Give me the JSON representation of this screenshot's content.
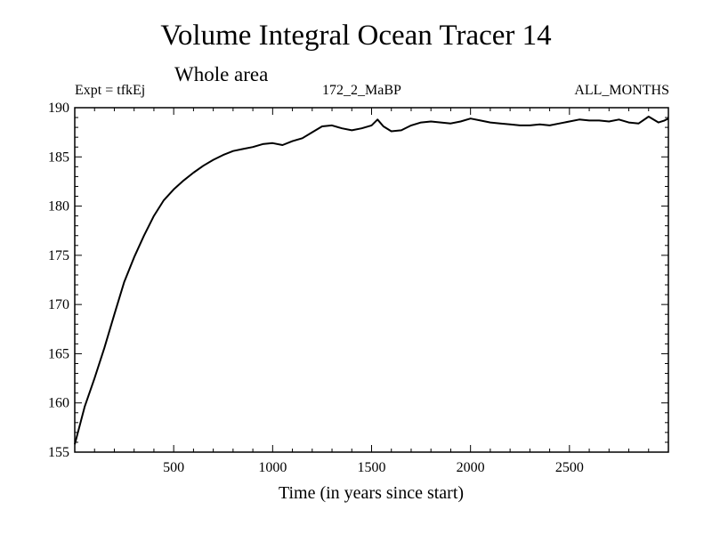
{
  "header": {
    "title": "Volume Integral Ocean Tracer 14",
    "subtitle": "Whole area",
    "expt": "Expt = tfkEj",
    "run": "172_2_MaBP",
    "period": "ALL_MONTHS"
  },
  "chart_data": {
    "type": "line",
    "title": "Volume Integral Ocean Tracer 14",
    "subtitle": "Whole area",
    "xlabel": "Time (in years since start)",
    "ylabel": "",
    "xlim": [
      0,
      3000
    ],
    "ylim": [
      155,
      190
    ],
    "xticks": [
      500,
      1000,
      1500,
      2000,
      2500
    ],
    "xtick_labels": [
      "500",
      "1000",
      "1500",
      "2000",
      "2500"
    ],
    "yticks": [
      155,
      160,
      165,
      170,
      175,
      180,
      185,
      190
    ],
    "ytick_labels": [
      "155",
      "160",
      "165",
      "170",
      "175",
      "180",
      "185",
      "190"
    ],
    "grid": false,
    "line_color": "#000000",
    "series": [
      {
        "x": [
          0,
          20,
          50,
          100,
          150,
          200,
          250,
          300,
          350,
          400,
          450,
          500,
          550,
          600,
          650,
          700,
          750,
          800,
          850,
          900,
          950,
          1000,
          1050,
          1100,
          1150,
          1200,
          1250,
          1300,
          1350,
          1400,
          1450,
          1500,
          1530,
          1560,
          1600,
          1650,
          1700,
          1750,
          1800,
          1850,
          1900,
          1950,
          2000,
          2050,
          2100,
          2150,
          2200,
          2250,
          2300,
          2350,
          2400,
          2450,
          2500,
          2550,
          2600,
          2650,
          2700,
          2750,
          2800,
          2850,
          2900,
          2950,
          2980,
          3000
        ],
        "y": [
          155.8,
          157.3,
          159.6,
          162.5,
          165.6,
          169.0,
          172.3,
          174.8,
          177.0,
          179.0,
          180.6,
          181.7,
          182.6,
          183.4,
          184.1,
          184.7,
          185.2,
          185.6,
          185.8,
          186.0,
          186.3,
          186.4,
          186.2,
          186.6,
          186.9,
          187.5,
          188.1,
          188.2,
          187.9,
          187.7,
          187.9,
          188.2,
          188.8,
          188.1,
          187.6,
          187.7,
          188.2,
          188.5,
          188.6,
          188.5,
          188.4,
          188.6,
          188.9,
          188.7,
          188.5,
          188.4,
          188.3,
          188.2,
          188.2,
          188.3,
          188.2,
          188.4,
          188.6,
          188.8,
          188.7,
          188.7,
          188.6,
          188.8,
          188.5,
          188.4,
          189.1,
          188.5,
          188.7,
          188.9
        ]
      }
    ]
  }
}
